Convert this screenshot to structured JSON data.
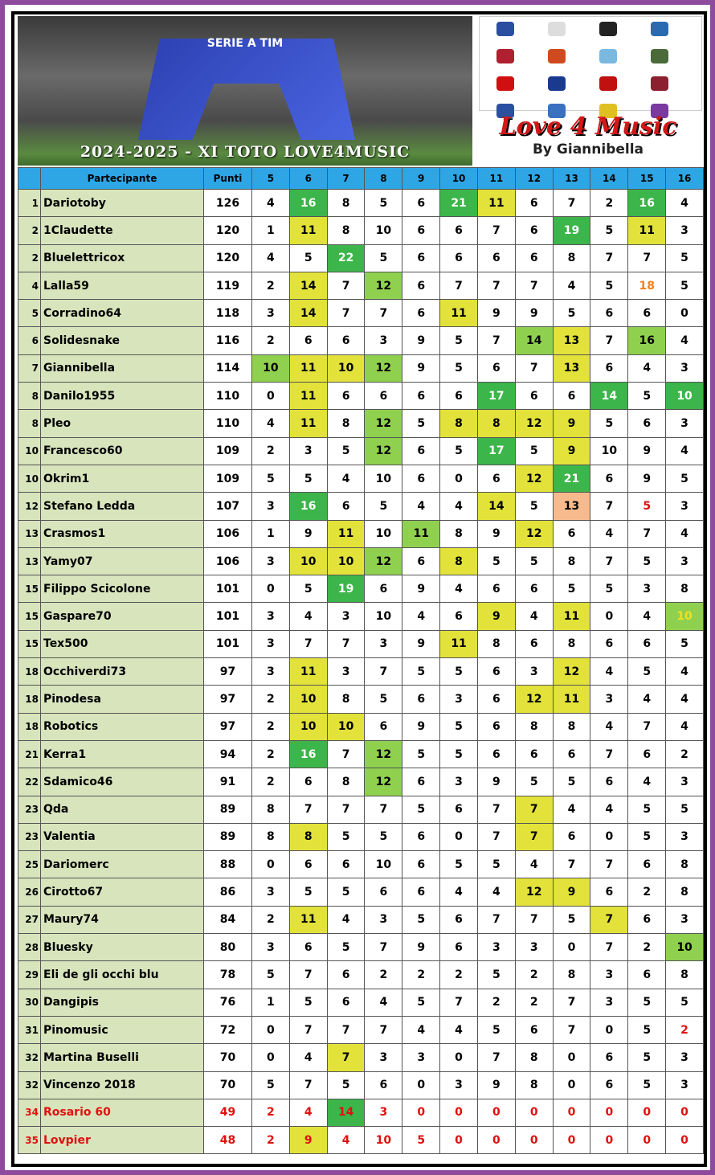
{
  "banner": {
    "league": "SERIE A TIM",
    "title": "2024-2025 - XI TOTO LOVE4MUSIC",
    "brand": "Love 4 Music",
    "author": "By Giannibella"
  },
  "table": {
    "columns": [
      "Partecipante",
      "Punti",
      "5",
      "6",
      "7",
      "8",
      "9",
      "10",
      "11",
      "12",
      "13",
      "14",
      "15",
      "16"
    ],
    "rows": [
      [
        1,
        "Dariotoby",
        126,
        4,
        16,
        8,
        5,
        6,
        21,
        11,
        6,
        7,
        2,
        16,
        4
      ],
      [
        2,
        "1Claudette",
        120,
        1,
        11,
        8,
        10,
        6,
        6,
        7,
        6,
        19,
        5,
        11,
        3
      ],
      [
        2,
        "Bluelettricox",
        120,
        4,
        5,
        22,
        5,
        6,
        6,
        6,
        6,
        8,
        7,
        7,
        5
      ],
      [
        4,
        "Lalla59",
        119,
        2,
        14,
        7,
        12,
        6,
        7,
        7,
        7,
        4,
        5,
        18,
        5
      ],
      [
        5,
        "Corradino64",
        118,
        3,
        14,
        7,
        7,
        6,
        11,
        9,
        9,
        5,
        6,
        6,
        0
      ],
      [
        6,
        "Solidesnake",
        116,
        2,
        6,
        6,
        3,
        9,
        5,
        7,
        14,
        13,
        7,
        16,
        4
      ],
      [
        7,
        "Giannibella",
        114,
        10,
        11,
        10,
        12,
        9,
        5,
        6,
        7,
        13,
        6,
        4,
        3
      ],
      [
        8,
        "Danilo1955",
        110,
        0,
        11,
        6,
        6,
        6,
        6,
        17,
        6,
        6,
        14,
        5,
        10
      ],
      [
        8,
        "Pleo",
        110,
        4,
        11,
        8,
        12,
        5,
        8,
        8,
        12,
        9,
        5,
        6,
        3
      ],
      [
        10,
        "Francesco60",
        109,
        2,
        3,
        5,
        12,
        6,
        5,
        17,
        5,
        9,
        10,
        9,
        4
      ],
      [
        10,
        "Okrim1",
        109,
        5,
        5,
        4,
        10,
        6,
        0,
        6,
        12,
        21,
        6,
        9,
        5
      ],
      [
        12,
        "Stefano Ledda",
        107,
        3,
        16,
        6,
        5,
        4,
        4,
        14,
        5,
        13,
        7,
        5,
        3
      ],
      [
        13,
        "Crasmos1",
        106,
        1,
        9,
        11,
        10,
        11,
        8,
        9,
        12,
        6,
        4,
        7,
        4
      ],
      [
        13,
        "Yamy07",
        106,
        3,
        10,
        10,
        12,
        6,
        8,
        5,
        5,
        8,
        7,
        5,
        3
      ],
      [
        15,
        "Filippo Scicolone",
        101,
        0,
        5,
        19,
        6,
        9,
        4,
        6,
        6,
        5,
        5,
        3,
        8
      ],
      [
        15,
        "Gaspare70",
        101,
        3,
        4,
        3,
        10,
        4,
        6,
        9,
        4,
        11,
        0,
        4,
        10
      ],
      [
        15,
        "Tex500",
        101,
        3,
        7,
        7,
        3,
        9,
        11,
        8,
        6,
        8,
        6,
        6,
        5
      ],
      [
        18,
        "Occhiverdi73",
        97,
        3,
        11,
        3,
        7,
        5,
        5,
        6,
        3,
        12,
        4,
        5,
        4
      ],
      [
        18,
        "Pinodesa",
        97,
        2,
        10,
        8,
        5,
        6,
        3,
        6,
        12,
        11,
        3,
        4,
        4
      ],
      [
        18,
        "Robotics",
        97,
        2,
        10,
        10,
        6,
        9,
        5,
        6,
        8,
        8,
        4,
        7,
        4
      ],
      [
        21,
        "Kerra1",
        94,
        2,
        16,
        7,
        12,
        5,
        5,
        6,
        6,
        6,
        7,
        6,
        2
      ],
      [
        22,
        "Sdamico46",
        91,
        2,
        6,
        8,
        12,
        6,
        3,
        9,
        5,
        5,
        6,
        4,
        3
      ],
      [
        23,
        "Qda",
        89,
        8,
        7,
        7,
        7,
        5,
        6,
        7,
        7,
        4,
        4,
        5,
        5
      ],
      [
        23,
        "Valentia",
        89,
        8,
        8,
        5,
        5,
        6,
        0,
        7,
        7,
        6,
        0,
        5,
        3
      ],
      [
        25,
        "Dariomerc",
        88,
        0,
        6,
        6,
        10,
        6,
        5,
        5,
        4,
        7,
        7,
        6,
        8
      ],
      [
        26,
        "Cirotto67",
        86,
        3,
        5,
        5,
        6,
        6,
        4,
        4,
        12,
        9,
        6,
        2,
        8
      ],
      [
        27,
        "Maury74",
        84,
        2,
        11,
        4,
        3,
        5,
        6,
        7,
        7,
        5,
        7,
        6,
        3
      ],
      [
        28,
        "Bluesky",
        80,
        3,
        6,
        5,
        7,
        9,
        6,
        3,
        3,
        0,
        7,
        2,
        10
      ],
      [
        29,
        "Eli de gli occhi blu",
        78,
        5,
        7,
        6,
        2,
        2,
        2,
        5,
        2,
        8,
        3,
        6,
        8
      ],
      [
        30,
        "Dangipis",
        76,
        1,
        5,
        6,
        4,
        5,
        7,
        2,
        2,
        7,
        3,
        5,
        5
      ],
      [
        31,
        "Pinomusic",
        72,
        0,
        7,
        7,
        7,
        4,
        4,
        5,
        6,
        7,
        0,
        5,
        2
      ],
      [
        32,
        "Martina Buselli",
        70,
        0,
        4,
        7,
        3,
        3,
        0,
        7,
        8,
        0,
        6,
        5,
        3
      ],
      [
        32,
        "Vincenzo 2018",
        70,
        5,
        7,
        5,
        6,
        0,
        3,
        9,
        8,
        0,
        6,
        5,
        3
      ],
      [
        34,
        "Rosario 60",
        49,
        2,
        4,
        14,
        3,
        0,
        0,
        0,
        0,
        0,
        0,
        0,
        0
      ],
      [
        35,
        "Lovpier",
        48,
        2,
        9,
        4,
        10,
        5,
        0,
        0,
        0,
        0,
        0,
        0,
        0
      ]
    ]
  }
}
